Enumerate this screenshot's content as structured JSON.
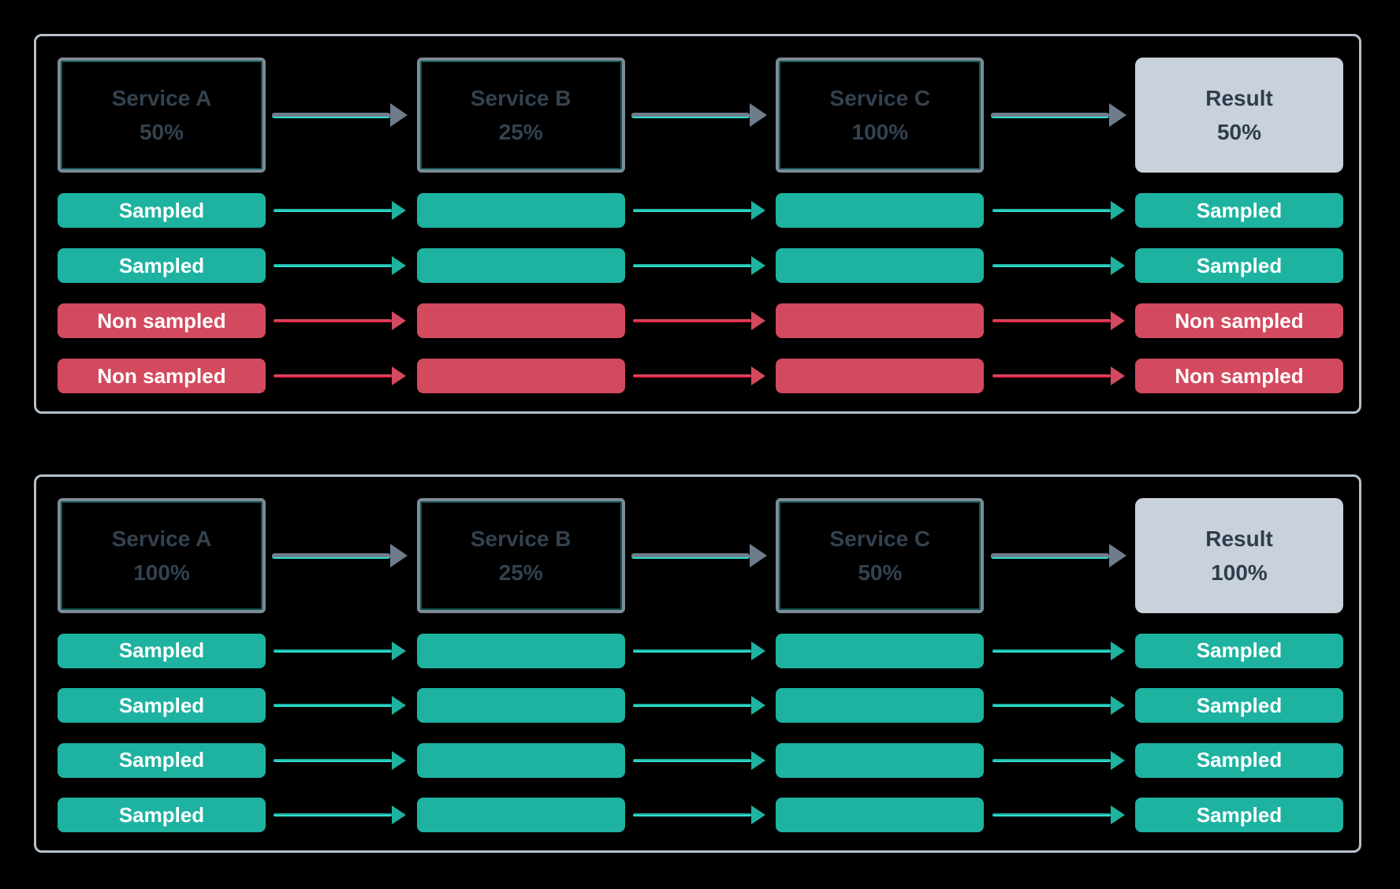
{
  "diagram": {
    "description": "Trace sampling flow diagram with two scenarios",
    "colors": {
      "background": "#000000",
      "panel_border": "#b6c0ca",
      "service_border": "#7d8a97",
      "service_text": "#33424f",
      "result_background": "#c9d2da",
      "sampled_green": "#1eb2a1",
      "non_sampled_red": "#d3495e",
      "accent_cyan": "#2fe0d2",
      "accent_red": "#e9264a",
      "arrow_grey": "#6e7c8b",
      "bar_text": "#ffffff"
    },
    "panels": [
      {
        "services": [
          {
            "name": "Service A",
            "rate": "50%"
          },
          {
            "name": "Service B",
            "rate": "25%"
          },
          {
            "name": "Service C",
            "rate": "100%"
          }
        ],
        "result": {
          "label": "Result",
          "rate": "50%"
        },
        "traces": [
          {
            "label": "Sampled",
            "status": "sampled"
          },
          {
            "label": "Sampled",
            "status": "sampled"
          },
          {
            "label": "Non sampled",
            "status": "non_sampled"
          },
          {
            "label": "Non sampled",
            "status": "non_sampled"
          }
        ]
      },
      {
        "services": [
          {
            "name": "Service A",
            "rate": "100%"
          },
          {
            "name": "Service B",
            "rate": "25%"
          },
          {
            "name": "Service C",
            "rate": "50%"
          }
        ],
        "result": {
          "label": "Result",
          "rate": "100%"
        },
        "traces": [
          {
            "label": "Sampled",
            "status": "sampled"
          },
          {
            "label": "Sampled",
            "status": "sampled"
          },
          {
            "label": "Sampled",
            "status": "sampled"
          },
          {
            "label": "Sampled",
            "status": "sampled"
          }
        ]
      }
    ]
  }
}
